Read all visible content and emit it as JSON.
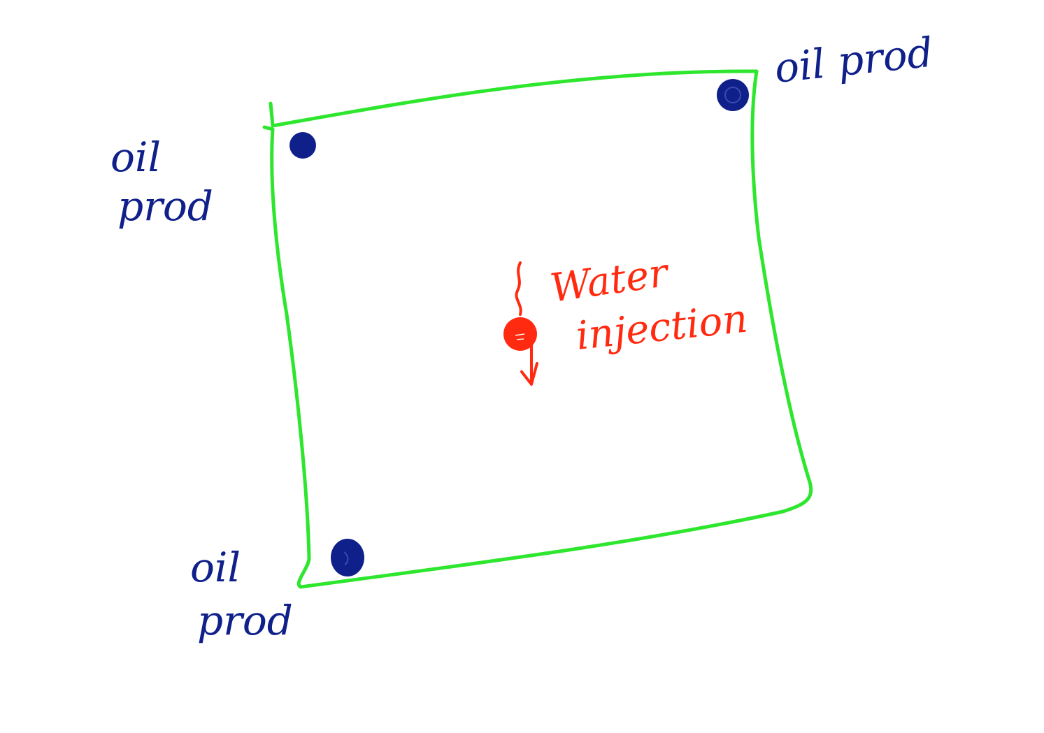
{
  "diagram": {
    "colors": {
      "boundary": "#2ee62e",
      "producer": "#10208a",
      "injector": "#ff2a10",
      "background": "#ffffff"
    },
    "producers": [
      {
        "id": "top-left",
        "label_line1": "oil",
        "label_line2": "prod"
      },
      {
        "id": "top-right",
        "label": "oil prod"
      },
      {
        "id": "bottom-left",
        "label_line1": "oil",
        "label_line2": "prod"
      }
    ],
    "injector": {
      "label_line1": "Water",
      "label_line2": "injection"
    }
  }
}
